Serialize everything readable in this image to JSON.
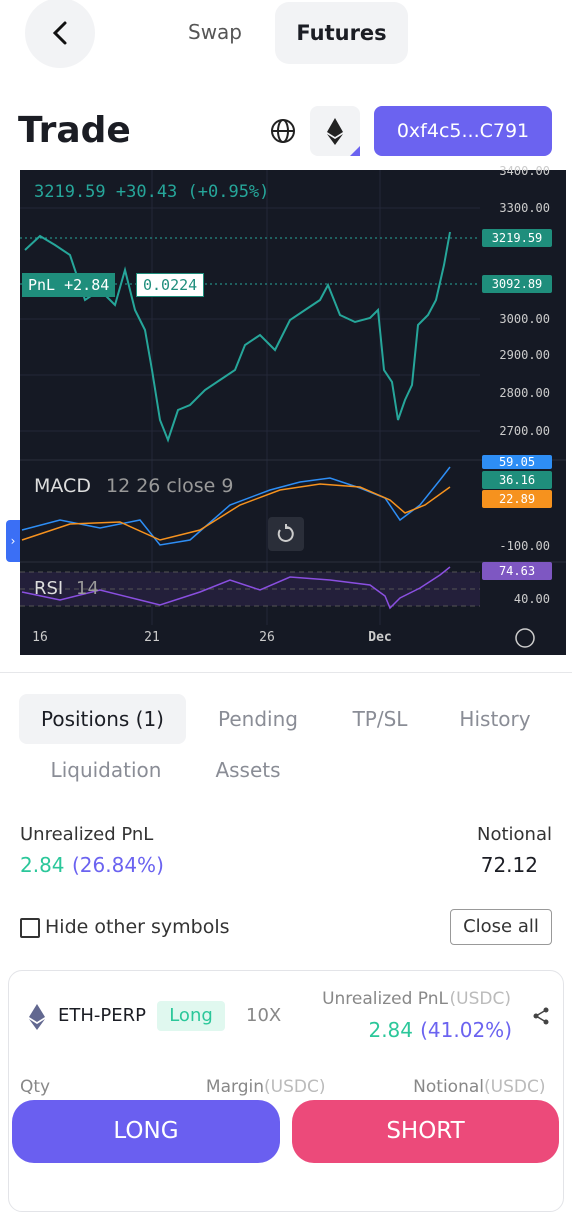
{
  "header": {
    "tabs": [
      "Swap",
      "Futures"
    ],
    "title": "Trade",
    "address": "0xf4c5...C791"
  },
  "chart": {
    "price_line": "3219.59 +30.43 (+0.95%)",
    "pnl_label": "PnL +2.84",
    "pnl_value": "0.0224",
    "price_axis": [
      "3400.00",
      "3300.00",
      "3000.00",
      "2900.00",
      "2800.00",
      "2700.00"
    ],
    "price_tags": [
      "3219.59",
      "3092.89"
    ],
    "macd_label": "MACD",
    "macd_params": "12 26 close 9",
    "macd_tags": [
      "59.05",
      "36.16",
      "22.89"
    ],
    "macd_axis": "-100.00",
    "rsi_label": "RSI",
    "rsi_params": "14",
    "rsi_tag": "74.63",
    "rsi_axis": "40.00",
    "dates": [
      "16",
      "21",
      "26",
      "Dec"
    ]
  },
  "tabs": [
    "Positions (1)",
    "Pending",
    "TP/SL",
    "History",
    "Liquidation",
    "Assets"
  ],
  "summary": {
    "pnl_label": "Unrealized PnL",
    "pnl": "2.84",
    "pnl_pct": "(26.84%)",
    "notional_label": "Notional",
    "notional": "72.12"
  },
  "filter": {
    "hide_other": "Hide other symbols",
    "close_all": "Close all"
  },
  "position": {
    "symbol": "ETH-PERP",
    "side": "Long",
    "leverage": "10X",
    "pnl_label": "Unrealized PnL",
    "pnl_unit": "(USDC)",
    "pnl": "2.84",
    "pnl_pct": "(41.02%)",
    "qty_label": "Qty",
    "margin_label": "Margin",
    "margin_unit": "(USDC)",
    "notional_label": "Notional",
    "notional_unit": "(USDC)"
  },
  "actions": [
    "LONG",
    "SHORT"
  ]
}
